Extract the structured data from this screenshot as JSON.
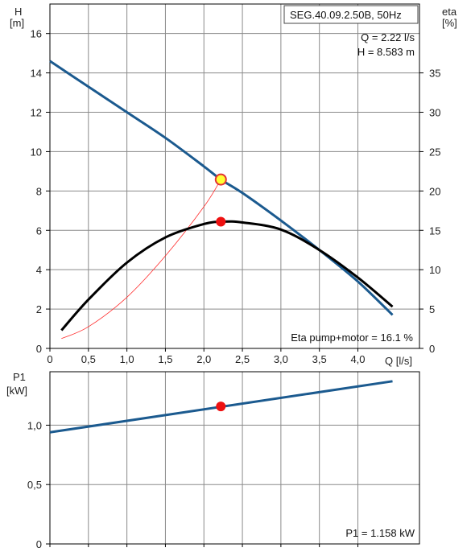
{
  "colors": {
    "grid": "#8a8a8a",
    "axis": "#000000",
    "system_curve": "#ff2d2d",
    "pump_curve": "#1b5a8f",
    "eta_curve": "#000000",
    "duty_point_fill": "#ffff33",
    "duty_point_stroke": "#e23333",
    "marker": "#ee1111"
  },
  "chart_data": [
    {
      "type": "line",
      "title": "SEG.40.09.2.50B, 50Hz",
      "xlabel": "Q [l/s]",
      "ylabel_top": "H",
      "ylabel_bottom": "[m]",
      "y2label_top": "eta",
      "y2label_bottom": "[%]",
      "xlim": [
        0,
        4.8
      ],
      "ylim": [
        0,
        17.5
      ],
      "y2lim": [
        0,
        43.75
      ],
      "x_tick_labels": [
        "0",
        "0,5",
        "1,0",
        "1,5",
        "2,0",
        "2,5",
        "3,0",
        "3,5",
        "4,0"
      ],
      "x_ticks": [
        0,
        0.5,
        1.0,
        1.5,
        2.0,
        2.5,
        3.0,
        3.5,
        4.0
      ],
      "y_tick_labels": [
        "0",
        "2",
        "4",
        "6",
        "8",
        "10",
        "12",
        "14",
        "16"
      ],
      "y_ticks": [
        0,
        2,
        4,
        6,
        8,
        10,
        12,
        14,
        16
      ],
      "y2_tick_labels": [
        "0",
        "5",
        "10",
        "15",
        "20",
        "25",
        "30",
        "35"
      ],
      "y2_ticks": [
        0,
        5,
        10,
        15,
        20,
        25,
        30,
        35
      ],
      "grid": true,
      "series": [
        {
          "id": "pump_curve",
          "axis": "left",
          "x": [
            0,
            0.5,
            1.0,
            1.5,
            2.0,
            2.22,
            2.5,
            3.0,
            3.5,
            4.0,
            4.45
          ],
          "values": [
            14.6,
            13.3,
            12.0,
            10.7,
            9.25,
            8.583,
            7.9,
            6.5,
            5.0,
            3.4,
            1.7
          ]
        },
        {
          "id": "eta_curve",
          "axis": "right",
          "x": [
            0.15,
            0.5,
            1.0,
            1.5,
            2.0,
            2.25,
            2.5,
            3.0,
            3.5,
            4.0,
            4.45
          ],
          "values": [
            2.3,
            6.2,
            10.9,
            14.1,
            15.8,
            16.1,
            16.0,
            15.1,
            12.5,
            9.0,
            5.3
          ]
        },
        {
          "id": "system_curve",
          "axis": "left",
          "x": [
            0.15,
            0.5,
            1.0,
            1.5,
            2.0,
            2.22
          ],
          "values": [
            0.5,
            1.1,
            2.6,
            4.7,
            7.2,
            8.583
          ]
        }
      ],
      "duty_point": {
        "x": 2.22,
        "y": 8.583
      },
      "eta_point": {
        "x": 2.22,
        "y2": 16.1
      },
      "annotations": {
        "q_text": "Q = 2.22 l/s",
        "h_text": "H = 8.583 m",
        "eta_text": "Eta pump+motor = 16.1 %"
      }
    },
    {
      "type": "line",
      "ylabel_top": "P1",
      "ylabel_bottom": "[kW]",
      "xlim": [
        0,
        4.8
      ],
      "ylim": [
        0,
        1.45
      ],
      "x_ticks": [
        0,
        0.5,
        1.0,
        1.5,
        2.0,
        2.5,
        3.0,
        3.5,
        4.0
      ],
      "y_tick_labels": [
        "0",
        "0,5",
        "1,0"
      ],
      "y_ticks": [
        0,
        0.5,
        1.0
      ],
      "grid": true,
      "series": [
        {
          "id": "power_curve",
          "axis": "left",
          "x": [
            0,
            4.45
          ],
          "values": [
            0.94,
            1.37
          ]
        }
      ],
      "duty_point": {
        "x": 2.22,
        "y": 1.158
      },
      "annotations": {
        "p1_text": "P1 = 1.158 kW"
      }
    }
  ]
}
